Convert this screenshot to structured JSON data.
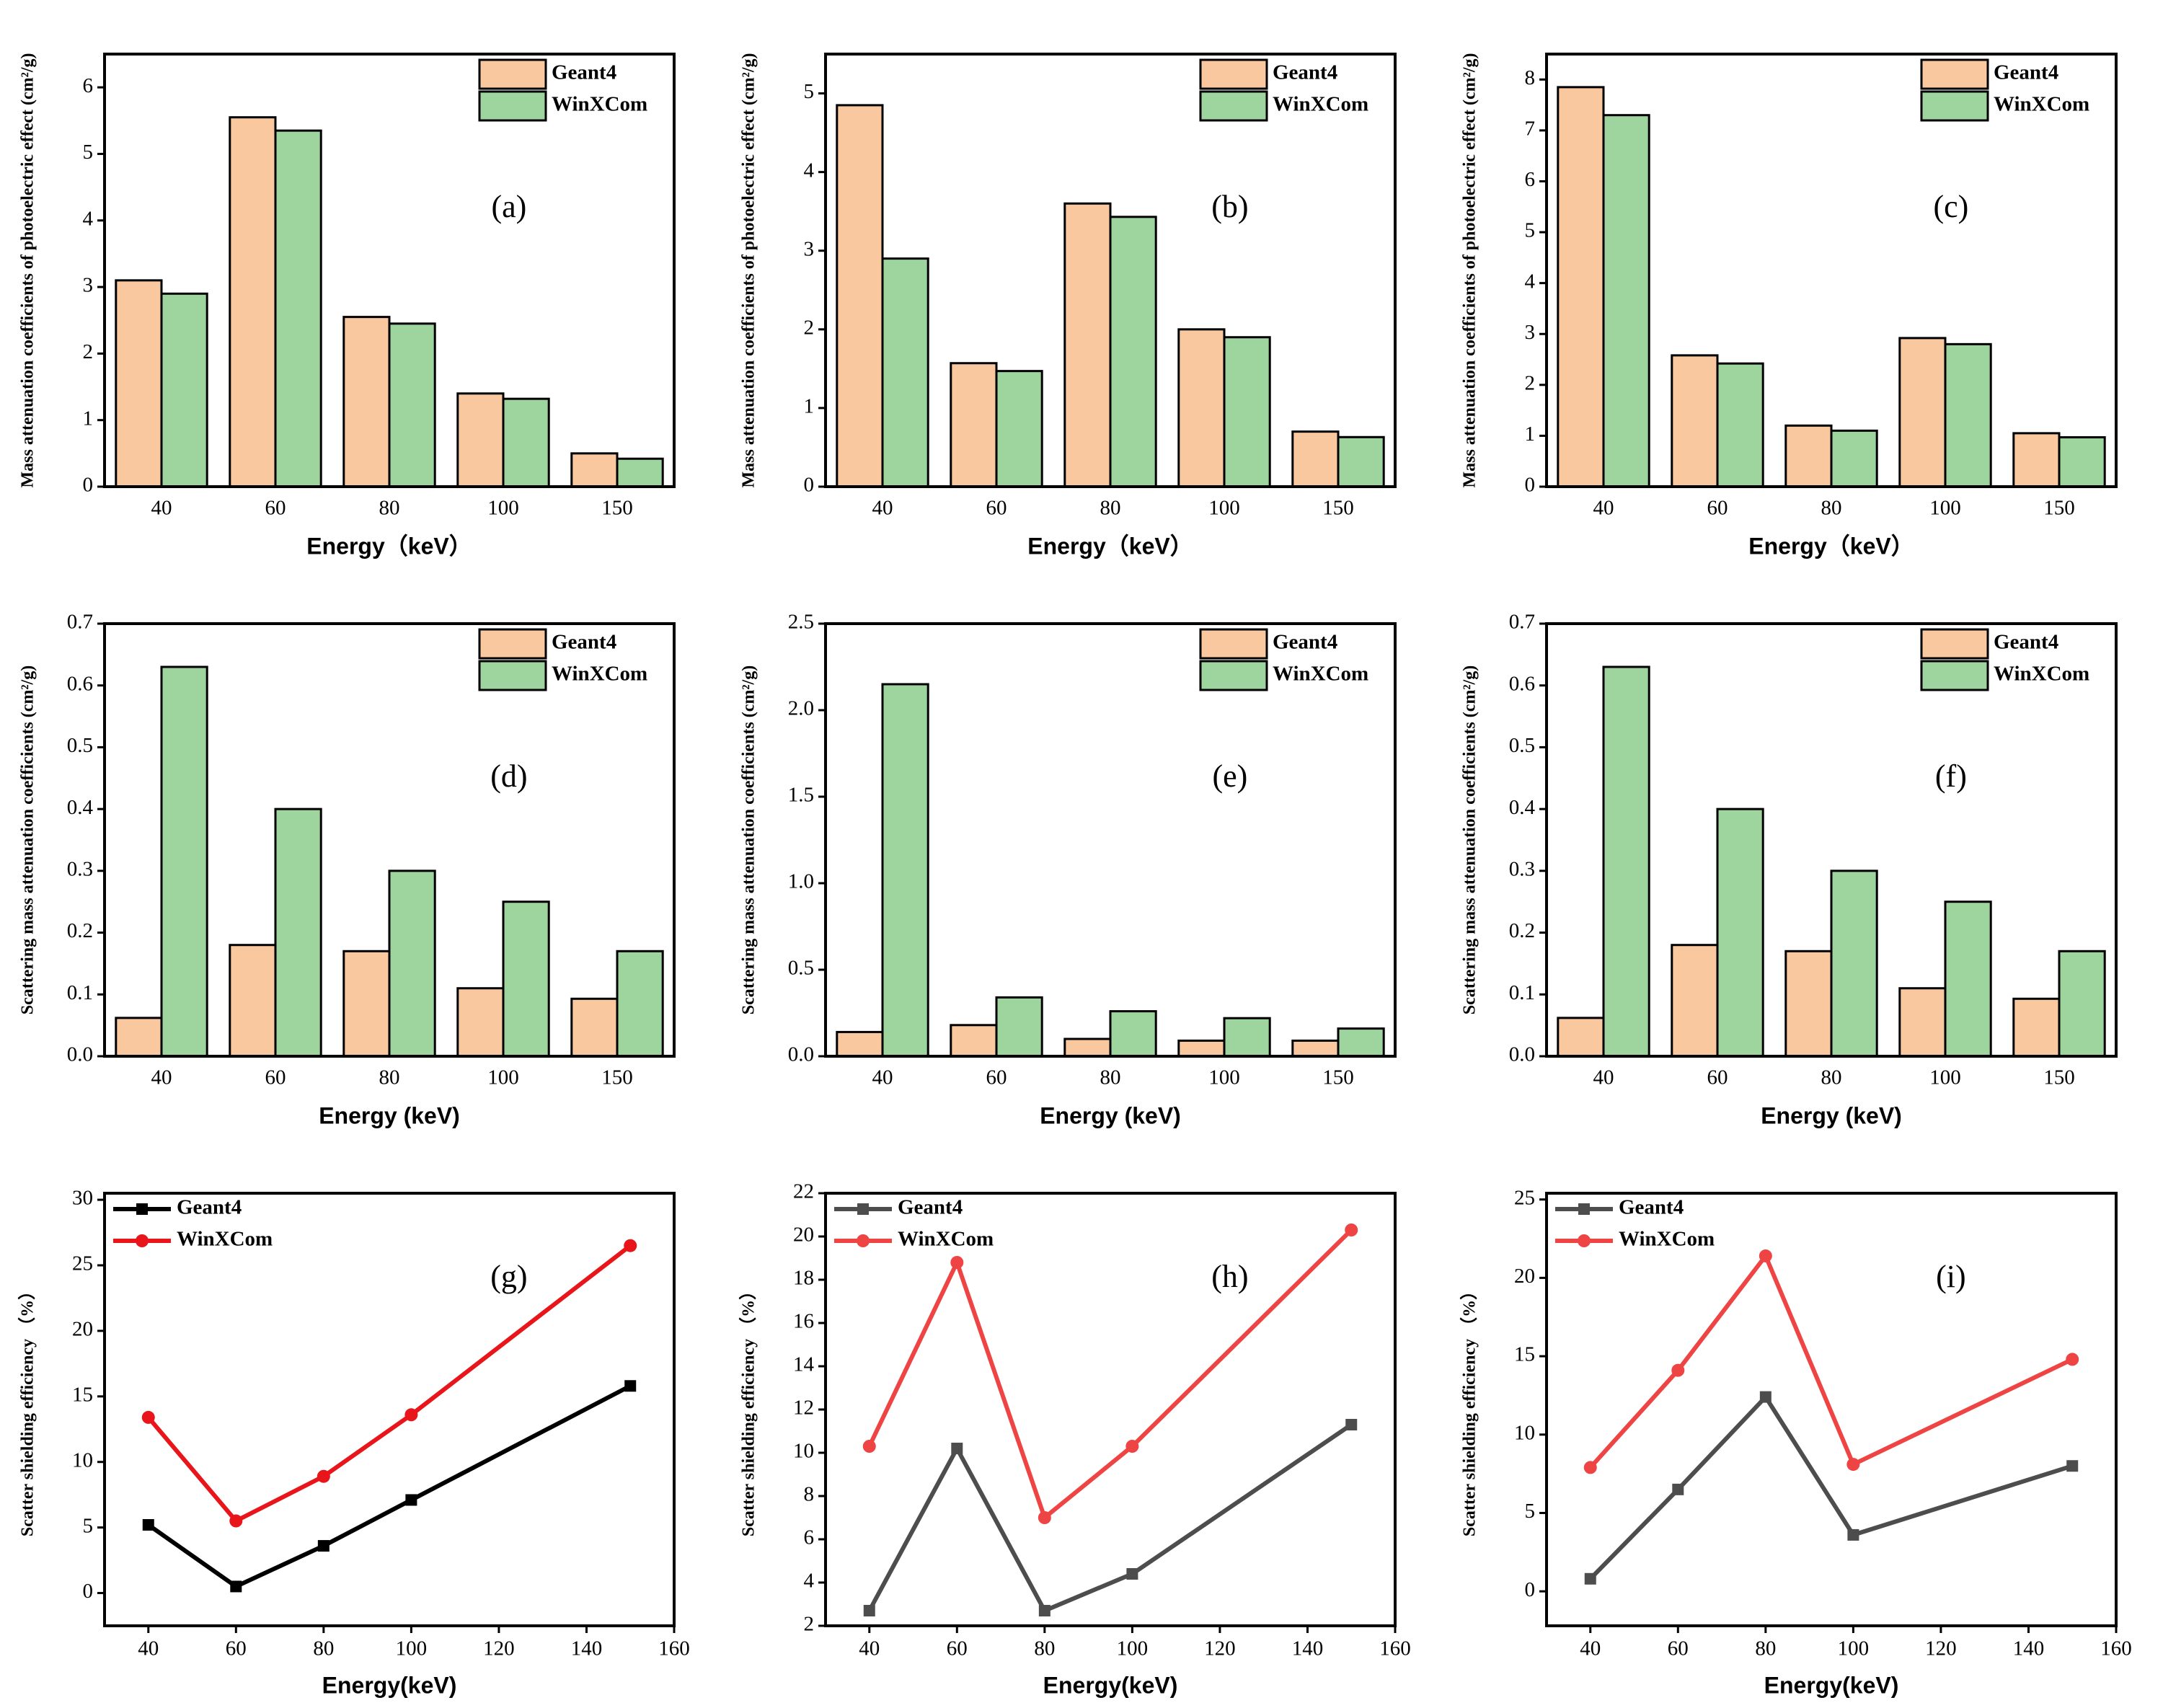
{
  "chart_data": [
    {
      "type": "bar",
      "annotation": "(a)",
      "xlabel": "Energy（keV）",
      "ylabel": "Mass attenuation coefficients of  photoelectric effect (cm²/g)",
      "categories": [
        "40",
        "60",
        "80",
        "100",
        "150"
      ],
      "series": [
        {
          "name": "Geant4",
          "color": "#f9c89f",
          "values": [
            3.1,
            5.55,
            2.55,
            1.4,
            0.5
          ]
        },
        {
          "name": "WinXCom",
          "color": "#9ed59e",
          "values": [
            2.9,
            5.35,
            2.45,
            1.32,
            0.42
          ]
        }
      ],
      "ylim": [
        0,
        6.5
      ],
      "yticks": [
        0,
        1,
        2,
        3,
        4,
        5,
        6
      ],
      "legend": "upper right"
    },
    {
      "type": "bar",
      "annotation": "(b)",
      "xlabel": "Energy（keV）",
      "ylabel": "Mass attenuation coefficients of  photoelectric effect (cm²/g)",
      "categories": [
        "40",
        "60",
        "80",
        "100",
        "150"
      ],
      "series": [
        {
          "name": "Geant4",
          "color": "#f9c89f",
          "values": [
            4.85,
            1.57,
            3.6,
            2.0,
            0.7
          ]
        },
        {
          "name": "WinXCom",
          "color": "#9ed59e",
          "values": [
            2.9,
            1.47,
            3.43,
            1.9,
            0.63
          ]
        }
      ],
      "ylim": [
        0,
        5.5
      ],
      "yticks": [
        0,
        1,
        2,
        3,
        4,
        5
      ],
      "legend": "upper right"
    },
    {
      "type": "bar",
      "annotation": "(c)",
      "xlabel": "Energy（keV）",
      "ylabel": "Mass attenuation coefficients of  photoelectric effect (cm²/g)",
      "categories": [
        "40",
        "60",
        "80",
        "100",
        "150"
      ],
      "series": [
        {
          "name": "Geant4",
          "color": "#f9c89f",
          "values": [
            7.85,
            2.58,
            1.2,
            2.92,
            1.05
          ]
        },
        {
          "name": "WinXCom",
          "color": "#9ed59e",
          "values": [
            7.3,
            2.42,
            1.1,
            2.8,
            0.97
          ]
        }
      ],
      "ylim": [
        0,
        8.5
      ],
      "yticks": [
        0,
        1,
        2,
        3,
        4,
        5,
        6,
        7,
        8
      ],
      "legend": "upper right"
    },
    {
      "type": "bar",
      "annotation": "(d)",
      "xlabel": "Energy (keV)",
      "ylabel": "Scattering mass attenuation coefficients (cm²/g)",
      "categories": [
        "40",
        "60",
        "80",
        "100",
        "150"
      ],
      "series": [
        {
          "name": "Geant4",
          "color": "#f9c89f",
          "values": [
            0.062,
            0.18,
            0.17,
            0.11,
            0.093
          ]
        },
        {
          "name": "WinXCom",
          "color": "#9ed59e",
          "values": [
            0.63,
            0.4,
            0.3,
            0.25,
            0.17
          ]
        }
      ],
      "ylim": [
        0,
        0.7
      ],
      "yticks": [
        {
          "value": 0,
          "label": "0.0"
        },
        0.1,
        0.2,
        0.3,
        0.4,
        0.5,
        0.6,
        0.7
      ],
      "legend": "upper right"
    },
    {
      "type": "bar",
      "annotation": "(e)",
      "xlabel": "Energy (keV)",
      "ylabel": "Scattering mass attenuation coefficients (cm²/g)",
      "categories": [
        "40",
        "60",
        "80",
        "100",
        "150"
      ],
      "series": [
        {
          "name": "Geant4",
          "color": "#f9c89f",
          "values": [
            0.14,
            0.18,
            0.1,
            0.09,
            0.09
          ]
        },
        {
          "name": "WinXCom",
          "color": "#9ed59e",
          "values": [
            2.15,
            0.34,
            0.26,
            0.22,
            0.16
          ]
        }
      ],
      "ylim": [
        0,
        2.5
      ],
      "yticks": [
        {
          "value": 0,
          "label": "0.0"
        },
        0.5,
        {
          "value": 1,
          "label": "1.0"
        },
        1.5,
        {
          "value": 2,
          "label": "2.0"
        },
        2.5
      ],
      "legend": "upper right"
    },
    {
      "type": "bar",
      "annotation": "(f)",
      "xlabel": "Energy (keV)",
      "ylabel": "Scattering mass attenuation coefficients (cm²/g)",
      "categories": [
        "40",
        "60",
        "80",
        "100",
        "150"
      ],
      "series": [
        {
          "name": "Geant4",
          "color": "#f9c89f",
          "values": [
            0.062,
            0.18,
            0.17,
            0.11,
            0.093
          ]
        },
        {
          "name": "WinXCom",
          "color": "#9ed59e",
          "values": [
            0.63,
            0.4,
            0.3,
            0.25,
            0.17
          ]
        }
      ],
      "ylim": [
        0,
        0.7
      ],
      "yticks": [
        {
          "value": 0,
          "label": "0.0"
        },
        0.1,
        0.2,
        0.3,
        0.4,
        0.5,
        0.6,
        0.7
      ],
      "legend": "upper right"
    },
    {
      "type": "line",
      "annotation": "(g)",
      "xlabel": "Energy(keV)",
      "ylabel": "Scatter shielding efficiency （%）",
      "x": [
        40,
        60,
        80,
        100,
        150
      ],
      "series": [
        {
          "name": "Geant4",
          "color": "#000000",
          "marker": "square",
          "values": [
            5.2,
            0.5,
            3.6,
            7.1,
            15.8
          ]
        },
        {
          "name": "WinXCom",
          "color": "#e8161b",
          "marker": "circle",
          "values": [
            13.4,
            5.5,
            8.9,
            13.6,
            26.5
          ]
        }
      ],
      "xlim": [
        30,
        160
      ],
      "xticks": [
        40,
        60,
        80,
        100,
        120,
        140,
        160
      ],
      "ylim": [
        -2.5,
        30.5
      ],
      "yticks": [
        0,
        5,
        10,
        15,
        20,
        25,
        30
      ],
      "legend": "upper left"
    },
    {
      "type": "line",
      "annotation": "(h)",
      "xlabel": "Energy(keV)",
      "ylabel": "Scatter shielding efficiency （%）",
      "x": [
        40,
        60,
        80,
        100,
        150
      ],
      "series": [
        {
          "name": "Geant4",
          "color": "#4d4d4d",
          "marker": "square",
          "values": [
            2.7,
            10.2,
            2.7,
            4.4,
            11.3
          ]
        },
        {
          "name": "WinXCom",
          "color": "#ef4444",
          "marker": "circle",
          "values": [
            10.3,
            18.8,
            7.0,
            10.3,
            20.3
          ]
        }
      ],
      "xlim": [
        30,
        160
      ],
      "xticks": [
        40,
        60,
        80,
        100,
        120,
        140,
        160
      ],
      "ylim": [
        2,
        22
      ],
      "yticks": [
        2,
        4,
        6,
        8,
        10,
        12,
        14,
        16,
        18,
        20,
        22
      ],
      "legend": "upper left"
    },
    {
      "type": "line",
      "annotation": "(i)",
      "xlabel": "Energy(keV)",
      "ylabel": "Scatter shielding efficiency （%）",
      "x": [
        40,
        60,
        80,
        100,
        150
      ],
      "series": [
        {
          "name": "Geant4",
          "color": "#4d4d4d",
          "marker": "square",
          "values": [
            0.8,
            6.5,
            12.4,
            3.6,
            8.0
          ]
        },
        {
          "name": "WinXCom",
          "color": "#ef4444",
          "marker": "circle",
          "values": [
            7.9,
            14.1,
            21.4,
            8.1,
            14.8
          ]
        }
      ],
      "xlim": [
        30,
        160
      ],
      "xticks": [
        40,
        60,
        80,
        100,
        120,
        140,
        160
      ],
      "ylim": [
        -2.2,
        25.4
      ],
      "yticks": [
        0,
        5,
        10,
        15,
        20,
        25
      ],
      "legend": "upper left"
    }
  ]
}
